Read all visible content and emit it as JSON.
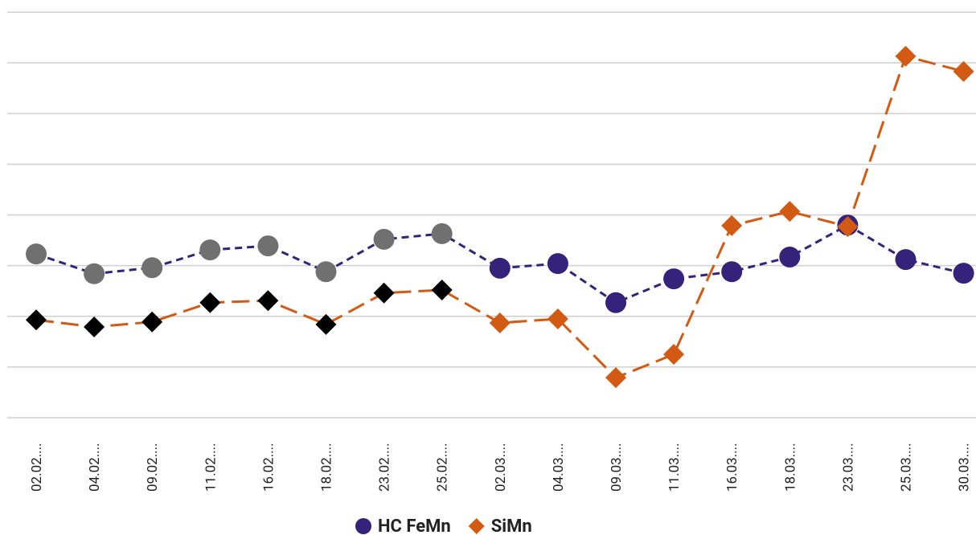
{
  "chart_data": {
    "type": "line",
    "categories": [
      "02.02....",
      "04.02....",
      "09.02....",
      "11.02....",
      "16.02....",
      "18.02....",
      "23.02....",
      "25.02....",
      "02.03....",
      "04.03....",
      "09.03....",
      "11.03....",
      "16.03....",
      "18.03....",
      "23.03....",
      "25.03....",
      "30.03...."
    ],
    "series": [
      {
        "name": "HC FeMn",
        "color": "#35227a",
        "marker": "circle",
        "marker_colors": [
          "#707070",
          "#707070",
          "#707070",
          "#707070",
          "#707070",
          "#707070",
          "#707070",
          "#707070",
          "#35227a",
          "#35227a",
          "#35227a",
          "#35227a",
          "#35227a",
          "#35227a",
          "#35227a",
          "#35227a",
          "#35227a"
        ],
        "values": [
          3.23,
          2.84,
          2.96,
          3.31,
          3.39,
          2.88,
          3.52,
          3.63,
          2.95,
          3.04,
          2.27,
          2.74,
          2.88,
          3.17,
          3.8,
          3.12,
          2.85
        ]
      },
      {
        "name": "SiMn",
        "color": "#d35a12",
        "marker": "diamond",
        "marker_colors": [
          "#000000",
          "#000000",
          "#000000",
          "#000000",
          "#000000",
          "#000000",
          "#000000",
          "#000000",
          "#d35a12",
          "#d35a12",
          "#d35a12",
          "#d35a12",
          "#d35a12",
          "#d35a12",
          "#d35a12",
          "#d35a12",
          "#d35a12"
        ],
        "values": [
          1.93,
          1.79,
          1.89,
          2.27,
          2.31,
          1.84,
          2.46,
          2.52,
          1.87,
          1.95,
          0.79,
          1.25,
          3.79,
          4.07,
          3.77,
          7.13,
          6.83
        ]
      }
    ],
    "ylim": [
      0,
      8.24
    ],
    "yticks": [
      0,
      1,
      2,
      3,
      4,
      5,
      6,
      7,
      8
    ],
    "grid": true
  }
}
